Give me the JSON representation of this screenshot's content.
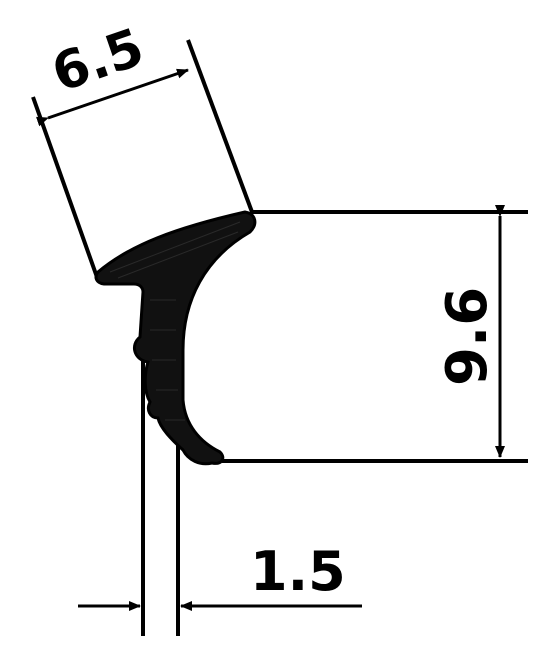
{
  "diagram": {
    "type": "seal-profile-cross-section",
    "colors": {
      "line": "#000000",
      "fill": "#111111",
      "background": "#ffffff"
    },
    "dimensions": {
      "top_width": "6.5",
      "height": "9.6",
      "wall_thickness": "1.5"
    }
  }
}
